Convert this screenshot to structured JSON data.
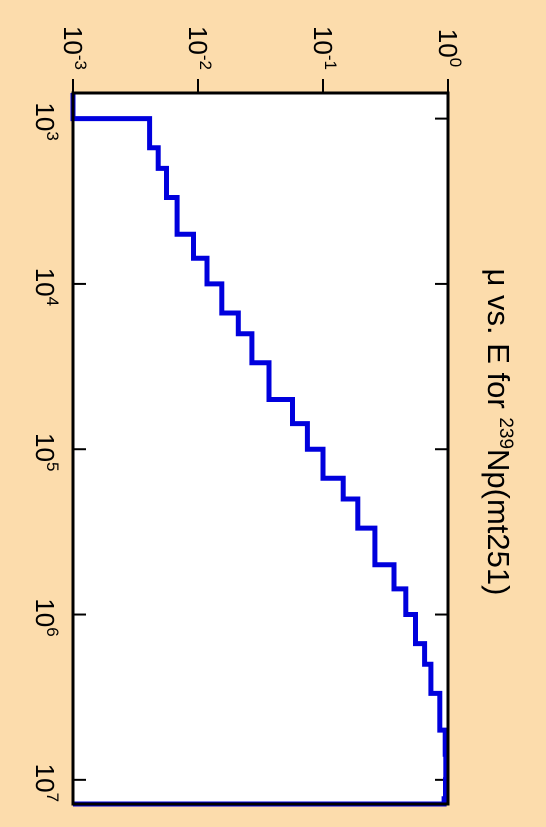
{
  "chart_data": {
    "type": "line",
    "orientation": "rotated 90° clockwise (energy axis runs top-to-bottom, mu axis right-to-left)",
    "title_parts": {
      "pre": "μ vs. E for ",
      "sup": "239",
      "post": "Np(mt251)"
    },
    "x_axis": {
      "scale": "log",
      "range": [
        700,
        14000000
      ],
      "ticks": [
        {
          "base": "10",
          "exp": "3",
          "value": 1000
        },
        {
          "base": "10",
          "exp": "4",
          "value": 10000
        },
        {
          "base": "10",
          "exp": "5",
          "value": 100000
        },
        {
          "base": "10",
          "exp": "6",
          "value": 1000000
        },
        {
          "base": "10",
          "exp": "7",
          "value": 10000000
        }
      ]
    },
    "y_axis": {
      "scale": "log",
      "range": [
        0.001,
        1
      ],
      "ticks": [
        {
          "base": "10",
          "exp": "-3",
          "value": 0.001
        },
        {
          "base": "10",
          "exp": "-2",
          "value": 0.01
        },
        {
          "base": "10",
          "exp": "-1",
          "value": 0.1
        },
        {
          "base": "10",
          "exp": "0",
          "value": 1
        }
      ]
    },
    "series": [
      {
        "color": "#0000dd",
        "step": true,
        "x": [
          700,
          1000,
          1000,
          1500,
          2000,
          3000,
          5000,
          7000,
          10000,
          15000,
          20000,
          30000,
          50000,
          70000,
          100000,
          150000,
          200000,
          300000,
          500000,
          700000,
          1000000,
          1500000,
          2000000,
          3000000,
          5000000,
          7000000,
          10000000,
          13000000,
          14000000
        ],
        "y": [
          0.001,
          0.001,
          0.0041,
          0.0048,
          0.0056,
          0.0068,
          0.0092,
          0.0118,
          0.0155,
          0.021,
          0.027,
          0.037,
          0.057,
          0.075,
          0.1,
          0.145,
          0.19,
          0.26,
          0.37,
          0.46,
          0.55,
          0.65,
          0.73,
          0.86,
          0.95,
          0.96,
          0.955,
          0.93,
          0.001
        ]
      }
    ]
  }
}
